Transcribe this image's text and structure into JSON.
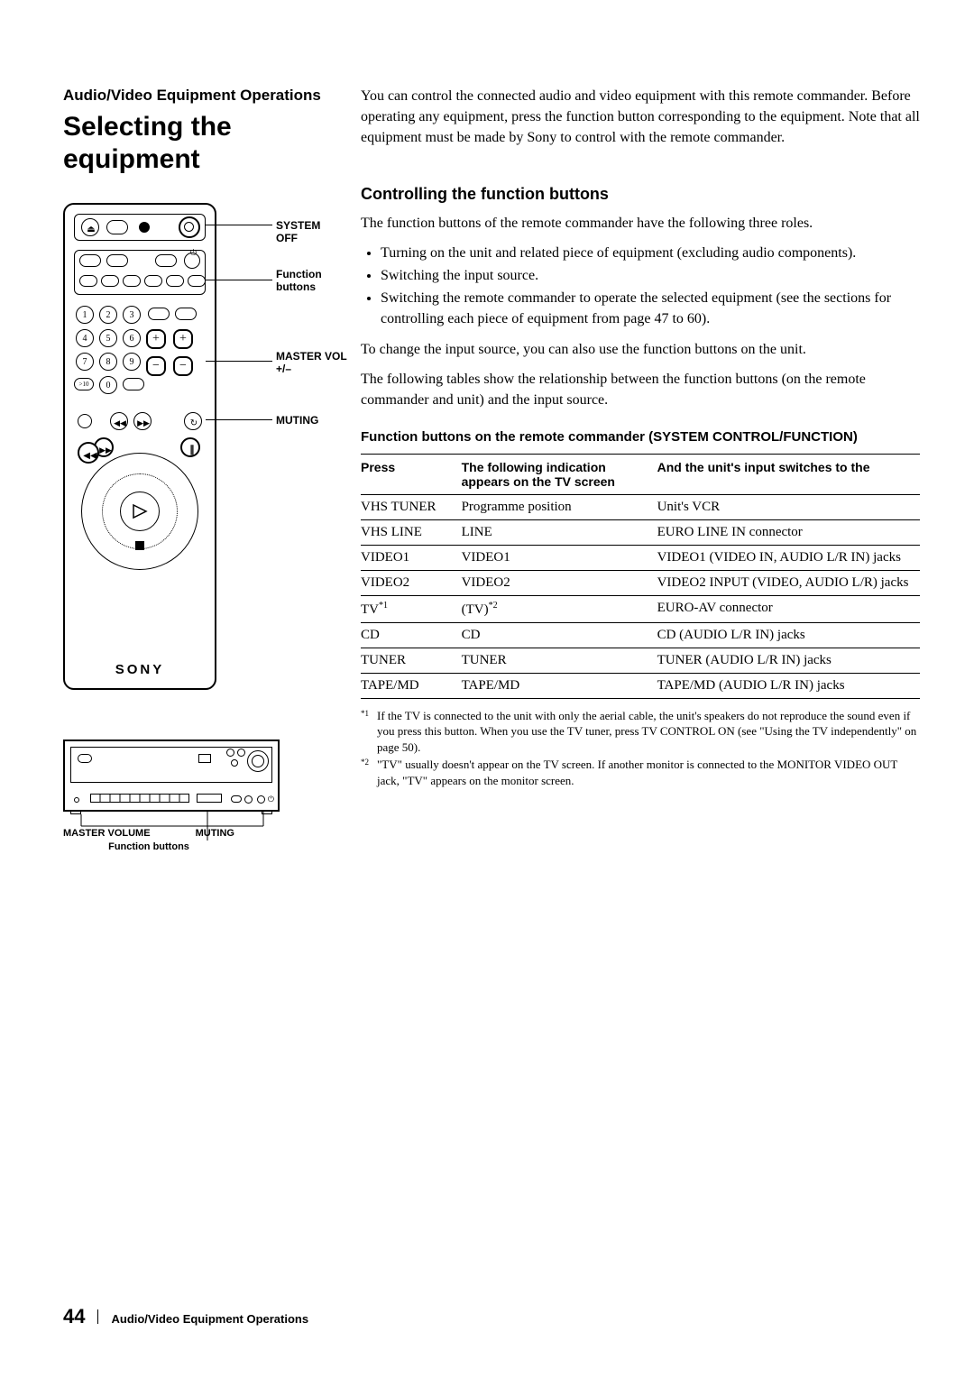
{
  "header": {
    "section_label": "Audio/Video Equipment Operations",
    "title": "Selecting the equipment"
  },
  "intro_paragraph": "You can control the connected audio and video equipment with this remote commander. Before operating any equipment, press the function button corresponding to the equipment.  Note that all equipment must be made by Sony to control with the remote commander.",
  "section": {
    "heading": "Controlling the function buttons",
    "lead": "The function buttons of the remote commander have the following three roles.",
    "bullets": [
      "Turning on the unit and related piece of equipment (excluding audio components).",
      "Switching the input source.",
      "Switching the remote commander to operate the selected equipment (see the sections for controlling each piece of equipment from page 47 to 60)."
    ],
    "followup1": "To change the input source, you can also use the function buttons on the unit.",
    "followup2": "The following tables show the relationship between the function buttons (on the remote commander and unit) and the input source."
  },
  "table": {
    "caption": "Function buttons on the remote commander (SYSTEM CONTROL/FUNCTION)",
    "columns": [
      "Press",
      "The following indication appears on the TV screen",
      "And the unit's input switches to the"
    ],
    "rows": [
      [
        "VHS TUNER",
        "Programme position",
        "Unit's VCR"
      ],
      [
        "VHS LINE",
        "LINE",
        "EURO LINE IN connector"
      ],
      [
        "VIDEO1",
        "VIDEO1",
        "VIDEO1 (VIDEO IN, AUDIO L/R IN) jacks"
      ],
      [
        "VIDEO2",
        "VIDEO2",
        "VIDEO2 INPUT (VIDEO, AUDIO L/R) jacks"
      ],
      [
        "TV*1",
        "(TV)*2",
        "EURO-AV connector"
      ],
      [
        "CD",
        "CD",
        "CD (AUDIO L/R IN) jacks"
      ],
      [
        "TUNER",
        "TUNER",
        "TUNER (AUDIO L/R IN) jacks"
      ],
      [
        "TAPE/MD",
        "TAPE/MD",
        "TAPE/MD (AUDIO L/R IN) jacks"
      ]
    ]
  },
  "footnotes": [
    {
      "mark": "*1",
      "text": "If the TV is connected to the unit with only the aerial cable, the unit's speakers do not reproduce the sound even if you press this button.  When you use the TV tuner, press TV CONTROL ON (see \"Using the TV independently\" on page 50)."
    },
    {
      "mark": "*2",
      "text": "\"TV\" usually doesn't appear on the TV screen.  If another monitor is connected to the MONITOR VIDEO OUT jack, \"TV\" appears on the monitor screen."
    }
  ],
  "remote": {
    "callouts": {
      "system_off": "SYSTEM OFF",
      "function_buttons": "Function buttons",
      "master_vol": "MASTER VOL +/–",
      "muting": "MUTING"
    },
    "brand": "SONY"
  },
  "unit": {
    "labels": {
      "master_volume": "MASTER VOLUME",
      "muting": "MUTING",
      "function_buttons": "Function buttons"
    }
  },
  "footer": {
    "page_number": "44",
    "section": "Audio/Video Equipment Operations"
  }
}
